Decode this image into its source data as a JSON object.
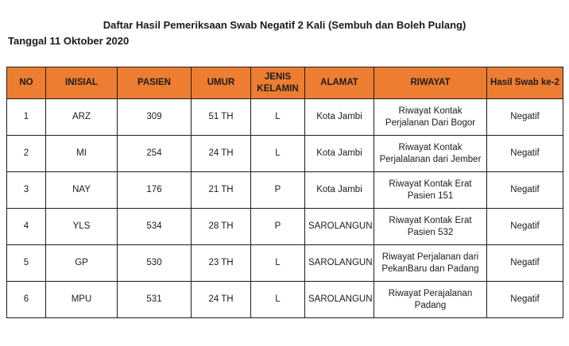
{
  "page": {
    "title": "Daftar Hasil Pemeriksaan Swab Negatif 2 Kali (Sembuh dan Boleh Pulang)",
    "date_line": "Tanggal 11 Oktober 2020"
  },
  "table": {
    "header_bg": "#ED7D31",
    "border_color": "#1c1c1c",
    "columns": [
      {
        "key": "no",
        "label": "NO"
      },
      {
        "key": "inisial",
        "label": "INISIAL"
      },
      {
        "key": "pasien",
        "label": "PASIEN"
      },
      {
        "key": "umur",
        "label": "UMUR"
      },
      {
        "key": "jenis-kelamin",
        "label": "JENIS KELAMIN"
      },
      {
        "key": "alamat",
        "label": "ALAMAT"
      },
      {
        "key": "riwayat",
        "label": "RIWAYAT"
      },
      {
        "key": "hasil-swab",
        "label": "Hasil Swab ke-2"
      }
    ],
    "rows": [
      [
        "1",
        "ARZ",
        "309",
        "51 TH",
        "L",
        "Kota Jambi",
        "Riwayat Kontak Perjalanan Dari Bogor",
        "Negatif"
      ],
      [
        "2",
        "MI",
        "254",
        "24 TH",
        "L",
        "Kota Jambi",
        "Riwayat Kontak Perjalalanan dari Jember",
        "Negatif"
      ],
      [
        "3",
        "NAY",
        "176",
        "21 TH",
        "P",
        "Kota Jambi",
        "Riwayat Kontak Erat Pasien 151",
        "Negatif"
      ],
      [
        "4",
        "YLS",
        "534",
        "28 TH",
        "P",
        "SAROLANGUN",
        "Riwayat Kontak Erat Pasien 532",
        "Negatif"
      ],
      [
        "5",
        "GP",
        "530",
        "23 TH",
        "L",
        "SAROLANGUN",
        "Riwayat Perjalanan dari PekanBaru dan Padang",
        "Negatif"
      ],
      [
        "6",
        "MPU",
        "531",
        "24 TH",
        "L",
        "SAROLANGUN",
        "Riwayat Perajalanan Padang",
        "Negatif"
      ]
    ]
  }
}
